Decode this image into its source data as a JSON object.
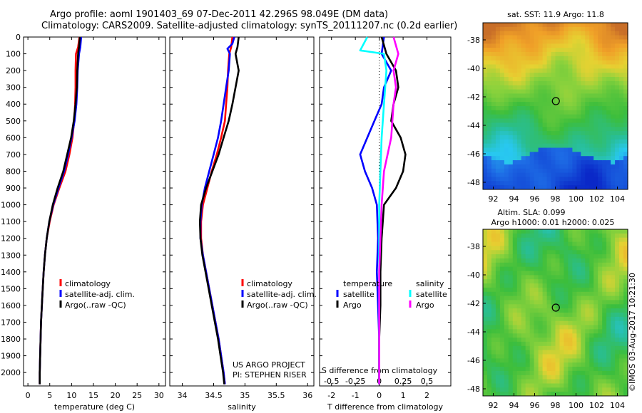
{
  "header": {
    "line1": "Argo profile: aoml 1901403_69 07-Dec-2011 42.296S 98.049E (DM data)",
    "line2": "Climatology: CARS2009. Satellite-adjusted climatology: synTS_20111207.nc (0.2d earlier)"
  },
  "side_text": "©IMOS 03-Aug-2017 10:21:30",
  "chart_data": [
    {
      "type": "line",
      "id": "temperature",
      "xlabel": "temperature (deg C)",
      "xlim": [
        -1,
        31.5
      ],
      "xticks": [
        0,
        5,
        10,
        15,
        20,
        25,
        30
      ],
      "ylim": [
        2080,
        0
      ],
      "yticks": [
        0,
        100,
        200,
        300,
        400,
        500,
        600,
        700,
        800,
        900,
        1000,
        1100,
        1200,
        1300,
        1400,
        1500,
        1600,
        1700,
        1800,
        1900,
        2000
      ],
      "legend": [
        "climatology",
        "satellite-adj. clim.",
        "Argo(..raw -QC)"
      ],
      "series": [
        {
          "name": "climatology",
          "color": "#ff0000",
          "points": [
            [
              11.8,
              0
            ],
            [
              11.5,
              60
            ],
            [
              11.0,
              100
            ],
            [
              10.9,
              200
            ],
            [
              10.9,
              300
            ],
            [
              10.8,
              400
            ],
            [
              10.6,
              500
            ],
            [
              10.2,
              600
            ],
            [
              9.5,
              700
            ],
            [
              8.6,
              800
            ],
            [
              7.2,
              900
            ],
            [
              5.9,
              1000
            ],
            [
              5.0,
              1100
            ],
            [
              4.3,
              1200
            ],
            [
              3.9,
              1300
            ],
            [
              3.6,
              1400
            ],
            [
              3.4,
              1500
            ],
            [
              3.2,
              1600
            ],
            [
              3.0,
              1700
            ],
            [
              2.9,
              1800
            ],
            [
              2.8,
              1900
            ],
            [
              2.7,
              2000
            ],
            [
              2.7,
              2070
            ]
          ]
        },
        {
          "name": "satellite-adj. clim.",
          "color": "#0000ff",
          "points": [
            [
              12.2,
              0
            ],
            [
              12.0,
              60
            ],
            [
              11.7,
              100
            ],
            [
              11.4,
              200
            ],
            [
              11.3,
              300
            ],
            [
              11.1,
              400
            ],
            [
              10.7,
              500
            ],
            [
              10.0,
              600
            ],
            [
              9.2,
              700
            ],
            [
              8.3,
              800
            ],
            [
              7.0,
              900
            ],
            [
              5.8,
              1000
            ],
            [
              4.9,
              1100
            ],
            [
              4.3,
              1200
            ],
            [
              3.9,
              1300
            ],
            [
              3.6,
              1400
            ],
            [
              3.4,
              1500
            ],
            [
              3.2,
              1600
            ],
            [
              3.0,
              1700
            ],
            [
              2.9,
              1800
            ],
            [
              2.8,
              1900
            ],
            [
              2.7,
              2000
            ],
            [
              2.7,
              2070
            ]
          ]
        },
        {
          "name": "Argo(..raw -QC)",
          "color": "#000000",
          "points": [
            [
              11.9,
              0
            ],
            [
              11.7,
              60
            ],
            [
              11.5,
              100
            ],
            [
              11.3,
              200
            ],
            [
              11.2,
              300
            ],
            [
              10.9,
              400
            ],
            [
              10.5,
              500
            ],
            [
              9.9,
              600
            ],
            [
              9.0,
              700
            ],
            [
              8.1,
              800
            ],
            [
              6.8,
              900
            ],
            [
              5.7,
              1000
            ],
            [
              4.9,
              1100
            ],
            [
              4.3,
              1200
            ],
            [
              3.9,
              1300
            ],
            [
              3.6,
              1400
            ],
            [
              3.4,
              1500
            ],
            [
              3.2,
              1600
            ],
            [
              3.0,
              1700
            ],
            [
              2.9,
              1800
            ],
            [
              2.8,
              1900
            ],
            [
              2.7,
              2000
            ],
            [
              2.7,
              2070
            ]
          ]
        }
      ]
    },
    {
      "type": "line",
      "id": "salinity",
      "xlabel": "salinity",
      "xlim": [
        33.8,
        36.1
      ],
      "xticks": [
        34,
        34.5,
        35,
        35.5,
        36
      ],
      "xticklabels": [
        "34",
        "34.5",
        "35",
        "35.5",
        "36"
      ],
      "ylim": [
        2080,
        0
      ],
      "legend": [
        "climatology",
        "satellite-adj. clim.",
        "Argo(..raw -QC)"
      ],
      "annotation": [
        "US ARGO PROJECT",
        "PI: STEPHEN RISER"
      ],
      "series": [
        {
          "name": "climatology",
          "color": "#ff0000",
          "points": [
            [
              34.8,
              0
            ],
            [
              34.78,
              60
            ],
            [
              34.75,
              100
            ],
            [
              34.73,
              200
            ],
            [
              34.72,
              300
            ],
            [
              34.7,
              400
            ],
            [
              34.68,
              500
            ],
            [
              34.62,
              600
            ],
            [
              34.55,
              700
            ],
            [
              34.47,
              800
            ],
            [
              34.4,
              900
            ],
            [
              34.33,
              1000
            ],
            [
              34.3,
              1100
            ],
            [
              34.3,
              1200
            ],
            [
              34.33,
              1300
            ],
            [
              34.38,
              1400
            ],
            [
              34.43,
              1500
            ],
            [
              34.48,
              1600
            ],
            [
              34.53,
              1700
            ],
            [
              34.58,
              1800
            ],
            [
              34.62,
              1900
            ],
            [
              34.66,
              2000
            ],
            [
              34.68,
              2070
            ]
          ]
        },
        {
          "name": "satellite-adj. clim.",
          "color": "#0000ff",
          "points": [
            [
              34.83,
              0
            ],
            [
              34.8,
              40
            ],
            [
              34.72,
              70
            ],
            [
              34.76,
              100
            ],
            [
              34.74,
              200
            ],
            [
              34.7,
              300
            ],
            [
              34.66,
              400
            ],
            [
              34.62,
              500
            ],
            [
              34.57,
              600
            ],
            [
              34.5,
              700
            ],
            [
              34.43,
              800
            ],
            [
              34.36,
              900
            ],
            [
              34.31,
              1000
            ],
            [
              34.29,
              1100
            ],
            [
              34.29,
              1200
            ],
            [
              34.33,
              1300
            ],
            [
              34.38,
              1400
            ],
            [
              34.43,
              1500
            ],
            [
              34.48,
              1600
            ],
            [
              34.53,
              1700
            ],
            [
              34.58,
              1800
            ],
            [
              34.62,
              1900
            ],
            [
              34.66,
              2000
            ],
            [
              34.68,
              2070
            ]
          ]
        },
        {
          "name": "Argo(..raw -QC)",
          "color": "#000000",
          "points": [
            [
              34.9,
              0
            ],
            [
              34.88,
              60
            ],
            [
              34.85,
              100
            ],
            [
              34.9,
              200
            ],
            [
              34.85,
              300
            ],
            [
              34.8,
              400
            ],
            [
              34.74,
              500
            ],
            [
              34.66,
              600
            ],
            [
              34.58,
              700
            ],
            [
              34.48,
              800
            ],
            [
              34.38,
              900
            ],
            [
              34.3,
              1000
            ],
            [
              34.28,
              1100
            ],
            [
              34.29,
              1200
            ],
            [
              34.32,
              1300
            ],
            [
              34.37,
              1400
            ],
            [
              34.42,
              1500
            ],
            [
              34.47,
              1600
            ],
            [
              34.52,
              1700
            ],
            [
              34.57,
              1800
            ],
            [
              34.61,
              1900
            ],
            [
              34.65,
              2000
            ],
            [
              34.67,
              2070
            ]
          ]
        }
      ]
    },
    {
      "type": "line",
      "id": "differences",
      "xlabel": "T difference from climatology",
      "xlabel_top": "S difference from climatology",
      "xlim": [
        -2.5,
        3
      ],
      "xticks": [
        -2,
        -1,
        0,
        1,
        2
      ],
      "top_ticks": [
        -0.5,
        -0.25,
        0,
        0.25,
        0.5
      ],
      "ylim": [
        2080,
        0
      ],
      "legend_temperature_title": "temperature",
      "legend_salinity_title": "salinity",
      "legend": [
        "satellite",
        "Argo",
        "satellite",
        "Argo"
      ],
      "series": [
        {
          "name": "satellite",
          "group": "temperature",
          "color": "#0000ff",
          "points": [
            [
              0.2,
              0
            ],
            [
              0.1,
              100
            ],
            [
              0.5,
              200
            ],
            [
              0.2,
              300
            ],
            [
              0.1,
              400
            ],
            [
              -0.2,
              500
            ],
            [
              -0.5,
              600
            ],
            [
              -0.8,
              700
            ],
            [
              -0.6,
              800
            ],
            [
              -0.3,
              900
            ],
            [
              -0.1,
              1000
            ],
            [
              -0.05,
              1200
            ],
            [
              -0.1,
              1400
            ],
            [
              -0.05,
              1600
            ],
            [
              0,
              1800
            ],
            [
              0,
              2070
            ]
          ]
        },
        {
          "name": "Argo",
          "group": "temperature",
          "color": "#000000",
          "points": [
            [
              0.1,
              0
            ],
            [
              0.3,
              100
            ],
            [
              0.7,
              200
            ],
            [
              0.8,
              300
            ],
            [
              0.6,
              400
            ],
            [
              0.5,
              500
            ],
            [
              0.9,
              600
            ],
            [
              1.1,
              700
            ],
            [
              1.0,
              800
            ],
            [
              0.7,
              900
            ],
            [
              0.2,
              1000
            ],
            [
              0.1,
              1200
            ],
            [
              0.05,
              1400
            ],
            [
              0.05,
              1600
            ],
            [
              0,
              1800
            ],
            [
              0,
              2070
            ]
          ]
        },
        {
          "name": "satellite",
          "group": "salinity",
          "color": "#00ffff",
          "points": [
            [
              -0.5,
              0
            ],
            [
              -0.8,
              80
            ],
            [
              0.2,
              100
            ],
            [
              0.3,
              200
            ],
            [
              0.2,
              400
            ],
            [
              0.1,
              600
            ],
            [
              0.05,
              800
            ],
            [
              0.0,
              1000
            ],
            [
              0.0,
              1400
            ],
            [
              0.0,
              1800
            ],
            [
              0.0,
              2070
            ]
          ]
        },
        {
          "name": "Argo",
          "group": "salinity",
          "color": "#ff00ff",
          "points": [
            [
              0.6,
              0
            ],
            [
              0.8,
              100
            ],
            [
              0.6,
              200
            ],
            [
              0.7,
              300
            ],
            [
              0.6,
              400
            ],
            [
              0.5,
              600
            ],
            [
              0.2,
              800
            ],
            [
              0.1,
              1000
            ],
            [
              0.05,
              1200
            ],
            [
              0.0,
              1400
            ],
            [
              0.0,
              1800
            ],
            [
              0.0,
              2070
            ]
          ]
        }
      ]
    },
    {
      "type": "heatmap",
      "id": "sst_map",
      "title": "sat. SST: 11.9 Argo: 11.8",
      "xlim": [
        91,
        105
      ],
      "ylim": [
        -48.5,
        -36.8
      ],
      "xticks": [
        92,
        94,
        96,
        98,
        100,
        102,
        104
      ],
      "yticks": [
        -38,
        -40,
        -42,
        -44,
        -46,
        -48
      ],
      "marker": [
        98.05,
        -42.3
      ]
    },
    {
      "type": "heatmap",
      "id": "sla_map",
      "title": "Altim. SLA: 0.099",
      "subtitle": "Argo h1000: 0.01 h2000: 0.025",
      "xlim": [
        91,
        105
      ],
      "ylim": [
        -48.5,
        -36.8
      ],
      "xticks": [
        92,
        94,
        96,
        98,
        100,
        102,
        104
      ],
      "yticks": [
        -38,
        -40,
        -42,
        -44,
        -46,
        -48
      ],
      "marker": [
        98.05,
        -42.3
      ]
    }
  ]
}
